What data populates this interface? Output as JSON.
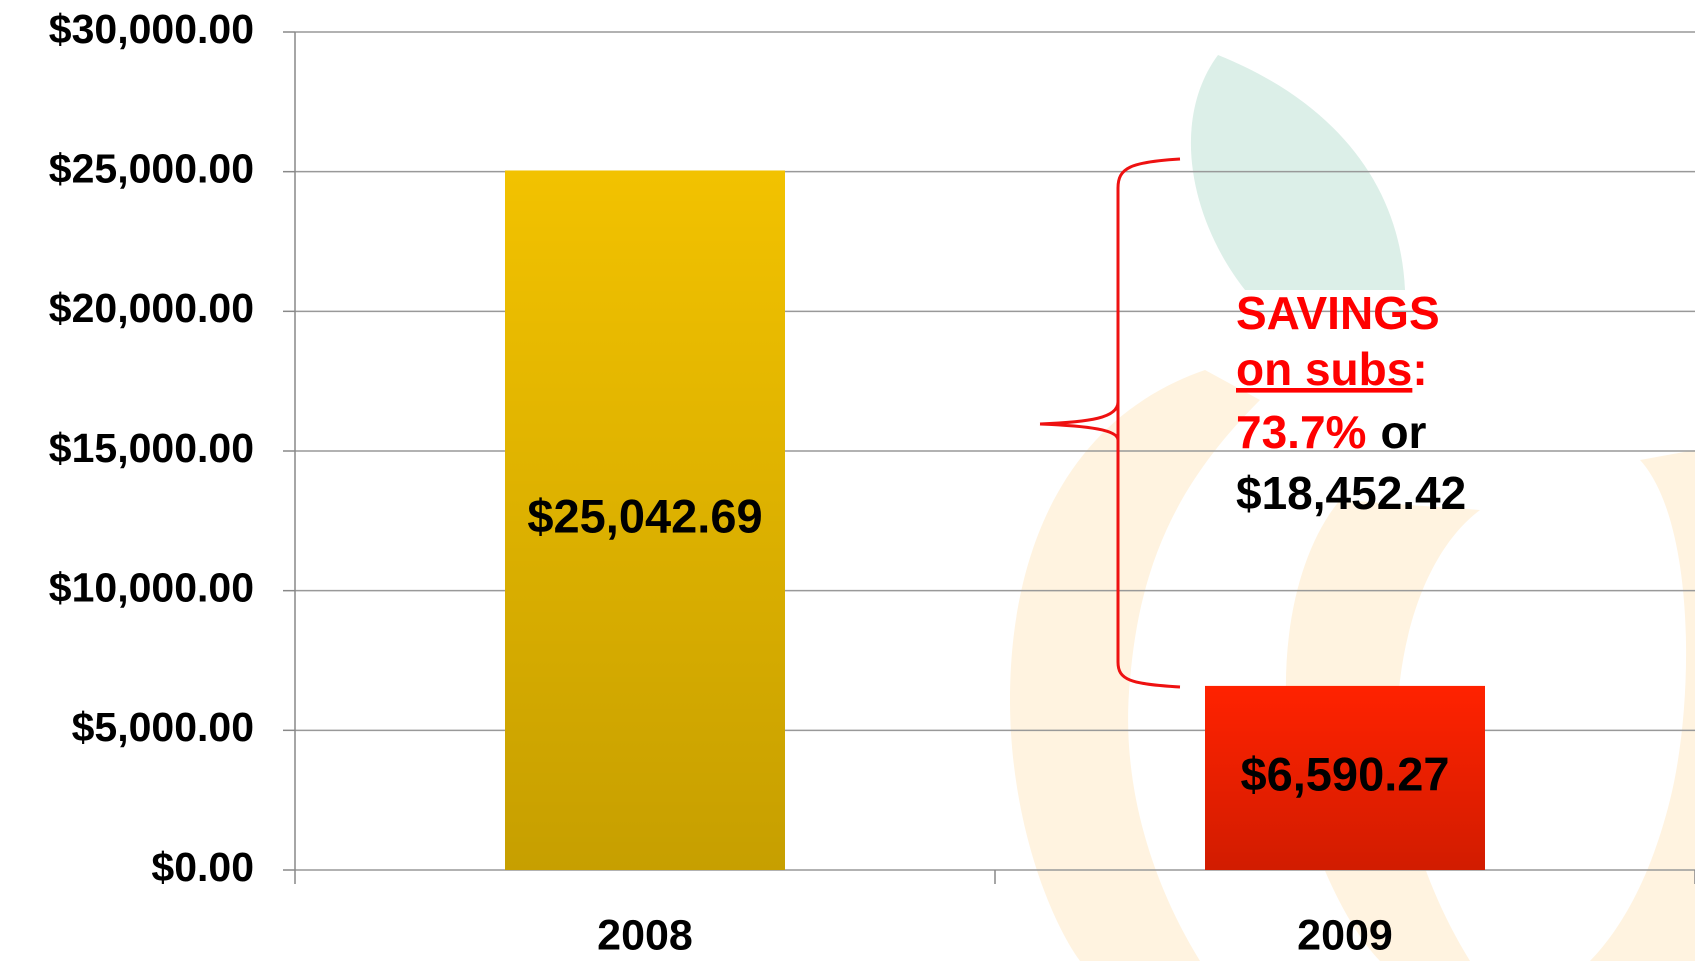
{
  "chart_data": {
    "type": "bar",
    "categories": [
      "2008",
      "2009"
    ],
    "values": [
      25042.69,
      6590.27
    ],
    "value_labels": [
      "$25,042.69",
      "$6,590.27"
    ],
    "colors": [
      "#f2c200",
      "#ff2200"
    ],
    "ylim": [
      0,
      30000
    ],
    "yticks": [
      {
        "value": 0,
        "label": "$0.00"
      },
      {
        "value": 5000,
        "label": "$5,000.00"
      },
      {
        "value": 10000,
        "label": "$10,000.00"
      },
      {
        "value": 15000,
        "label": "$15,000.00"
      },
      {
        "value": 20000,
        "label": "$20,000.00"
      },
      {
        "value": 25000,
        "label": "$25,000.00"
      },
      {
        "value": 30000,
        "label": "$30,000.00"
      }
    ],
    "grid": true,
    "annotation": [
      "SAVINGS",
      "on subs",
      ":",
      "73.7%",
      "or",
      "$18,452.42"
    ]
  }
}
